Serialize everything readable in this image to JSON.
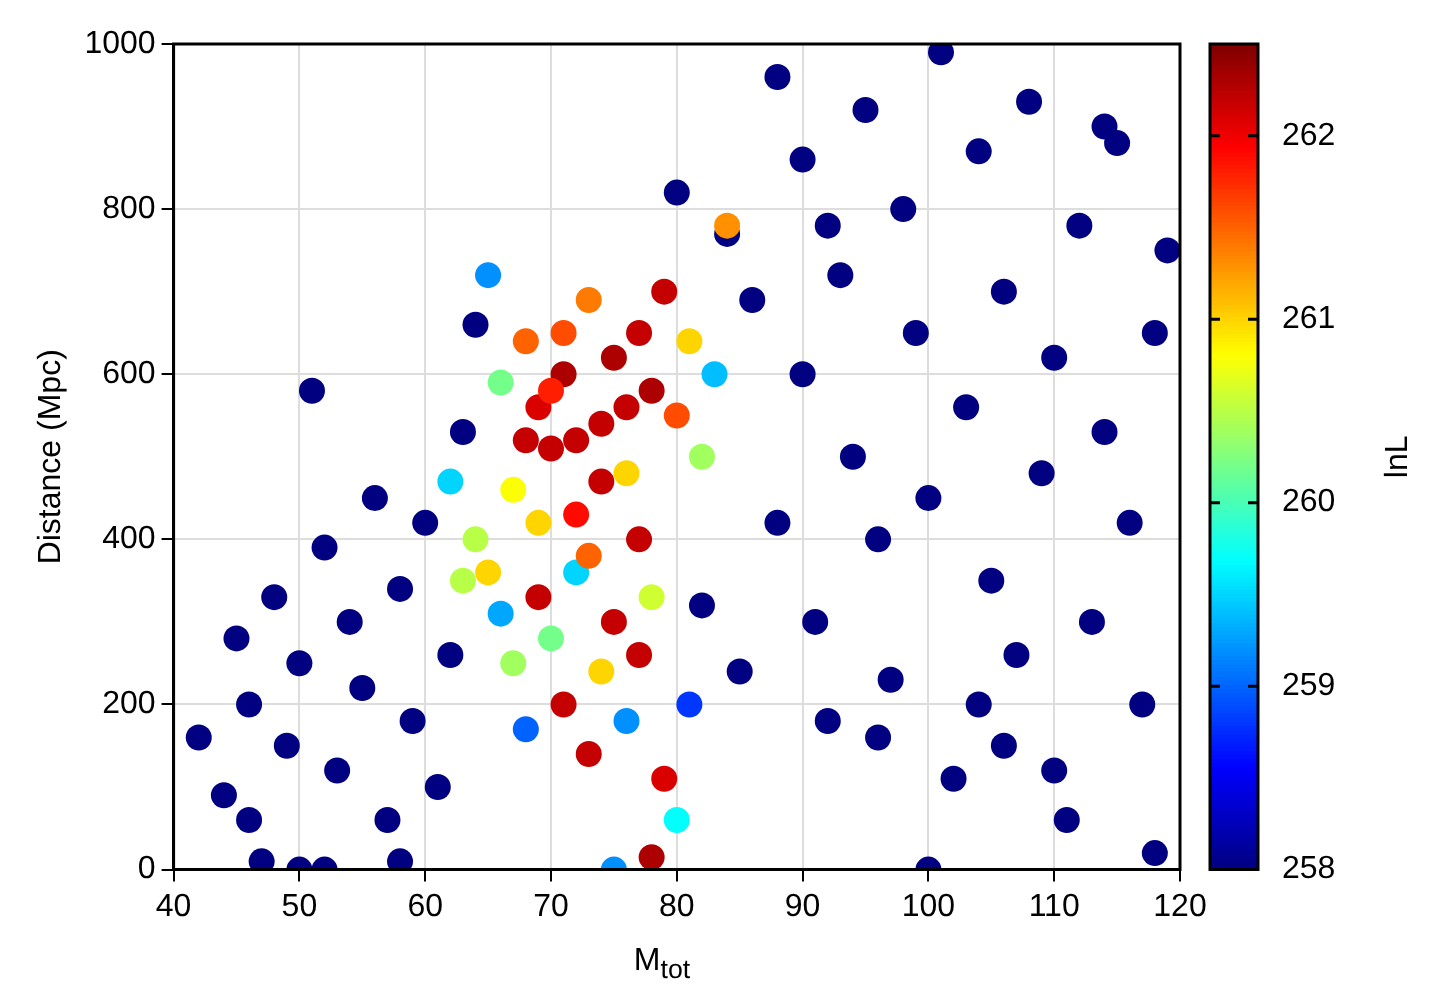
{
  "chart_data": {
    "type": "scatter",
    "xlabel": "M$_{tot}$",
    "ylabel": "Distance (Mpc)",
    "clabel": "lnL",
    "xlim": [
      40,
      120
    ],
    "xticks": [
      40,
      50,
      60,
      70,
      80,
      90,
      100,
      110,
      120
    ],
    "ylim": [
      0,
      1000
    ],
    "yticks": [
      0,
      200,
      400,
      600,
      800,
      1000
    ],
    "clim": [
      258,
      262.5
    ],
    "cticks": [
      258,
      259,
      260,
      261,
      262
    ],
    "grid": true,
    "marker": "circle",
    "x": [
      42,
      44,
      45,
      46,
      47,
      48,
      49,
      50,
      51,
      52,
      53,
      54,
      55,
      56,
      57,
      58,
      59,
      60,
      61,
      62,
      63,
      64,
      58,
      50,
      52,
      46,
      80,
      84,
      86,
      88,
      90,
      90,
      91,
      92,
      93,
      94,
      95,
      96,
      97,
      98,
      99,
      100,
      101,
      102,
      103,
      104,
      105,
      106,
      107,
      108,
      109,
      110,
      111,
      112,
      113,
      114,
      115,
      116,
      117,
      118,
      119,
      118,
      104,
      100,
      96,
      106,
      110,
      88,
      92,
      114,
      85,
      82,
      65,
      66,
      67,
      68,
      69,
      70,
      71,
      72,
      73,
      74,
      75,
      76,
      77,
      78,
      79,
      80,
      81,
      82,
      83,
      84,
      64,
      65,
      66,
      67,
      68,
      69,
      70,
      71,
      72,
      73,
      74,
      75,
      76,
      77,
      78,
      79,
      80,
      78,
      75,
      81,
      62,
      63,
      70,
      72,
      74,
      76,
      68,
      71,
      77,
      73,
      69
    ],
    "values": [
      160,
      90,
      280,
      200,
      10,
      330,
      150,
      250,
      580,
      390,
      120,
      300,
      220,
      450,
      60,
      340,
      180,
      420,
      100,
      260,
      530,
      660,
      10,
      0,
      0,
      60,
      820,
      770,
      690,
      960,
      860,
      600,
      300,
      180,
      720,
      500,
      920,
      400,
      230,
      800,
      650,
      450,
      990,
      110,
      560,
      870,
      350,
      700,
      260,
      930,
      480,
      620,
      60,
      780,
      300,
      530,
      880,
      420,
      200,
      650,
      750,
      20,
      200,
      0,
      160,
      150,
      120,
      420,
      780,
      900,
      240,
      320,
      720,
      590,
      460,
      640,
      560,
      510,
      600,
      430,
      690,
      540,
      620,
      480,
      650,
      580,
      700,
      550,
      640,
      500,
      600,
      780,
      400,
      360,
      310,
      250,
      170,
      330,
      280,
      200,
      360,
      140,
      240,
      300,
      180,
      260,
      330,
      110,
      60,
      15,
      0,
      200,
      470,
      350,
      580,
      520,
      470,
      560,
      520,
      650,
      400,
      380,
      420
    ],
    "cvalues": [
      258,
      258,
      258,
      258,
      258,
      258,
      258,
      258,
      258,
      258,
      258,
      258,
      258,
      258,
      258,
      258,
      258,
      258,
      258,
      258,
      258,
      258,
      258,
      258,
      258,
      258,
      258,
      258,
      258,
      258,
      258,
      258,
      258,
      258,
      258,
      258,
      258,
      258,
      258,
      258,
      258,
      258,
      258,
      258,
      258,
      258,
      258,
      258,
      258,
      258,
      258,
      258,
      258,
      258,
      258,
      258,
      258,
      258,
      258,
      258,
      258,
      258,
      258,
      258,
      258,
      258,
      258,
      258,
      258,
      258,
      258,
      258,
      259.2,
      260.2,
      260.8,
      261.5,
      262.1,
      262.2,
      262.3,
      261.9,
      261.4,
      262.2,
      262.3,
      261,
      262.2,
      262.3,
      262.2,
      261.6,
      261,
      260.4,
      259.4,
      261.3,
      260.5,
      261,
      259.3,
      260.4,
      259,
      262.2,
      260.2,
      262.2,
      259.5,
      262.2,
      261,
      262.2,
      259.2,
      262.2,
      260.6,
      262.1,
      259.7,
      262.3,
      259.2,
      258.8,
      259.5,
      260.5,
      261.8,
      262.2,
      262.2,
      262.2,
      262.2,
      261.6,
      262.2,
      261.5,
      261
    ]
  }
}
